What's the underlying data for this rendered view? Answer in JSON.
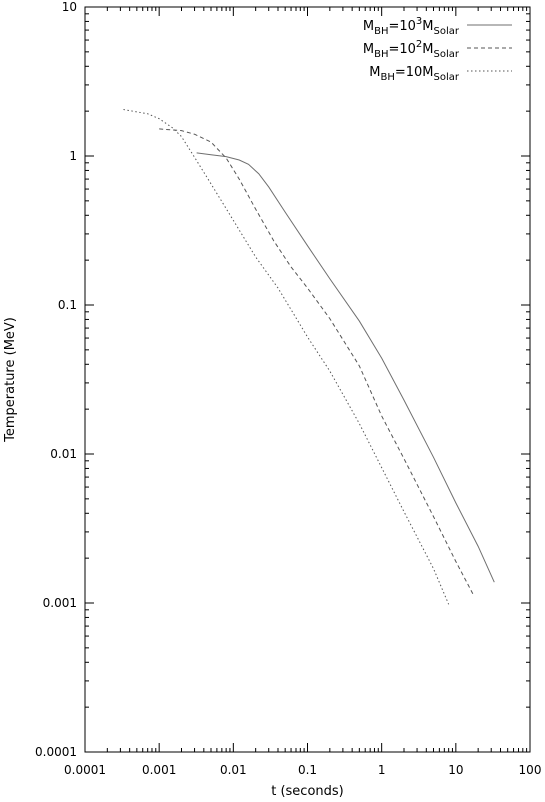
{
  "chart_data": {
    "type": "line",
    "xlabel": "t (seconds)",
    "ylabel": "Temperature (MeV)",
    "xscale": "log",
    "yscale": "log",
    "xlim": [
      0.0001,
      100
    ],
    "ylim": [
      0.0001,
      10
    ],
    "xtick_labels": [
      "0.0001",
      "0.001",
      "0.01",
      "0.1",
      "1",
      "10",
      "100"
    ],
    "ytick_labels": [
      "0.0001",
      "0.001",
      "0.01",
      "0.1",
      "1",
      "10"
    ],
    "grid": false,
    "legend_position": "top-right",
    "series": [
      {
        "name": "M_BH=10^3 M_Solar",
        "label_main": "M",
        "label_sub1": "BH",
        "label_mid": "=10",
        "label_sup": "3",
        "label_m2": "M",
        "label_sub2": "Solar",
        "style": "solid",
        "color": "#6f6f6f",
        "x": [
          0.0032,
          0.005,
          0.008,
          0.012,
          0.016,
          0.022,
          0.03,
          0.05,
          0.1,
          0.2,
          0.5,
          1.0,
          2.0,
          5.0,
          10.0,
          20.0,
          33.0
        ],
        "y": [
          1.05,
          1.02,
          0.99,
          0.94,
          0.88,
          0.76,
          0.62,
          0.42,
          0.25,
          0.15,
          0.078,
          0.044,
          0.023,
          0.0095,
          0.0047,
          0.0024,
          0.00138
        ]
      },
      {
        "name": "M_BH=10^2 M_Solar",
        "label_main": "M",
        "label_sub1": "BH",
        "label_mid": "=10",
        "label_sup": "2",
        "label_m2": "M",
        "label_sub2": "Solar",
        "style": "dashed",
        "color": "#555555",
        "x": [
          0.001,
          0.002,
          0.003,
          0.005,
          0.008,
          0.012,
          0.02,
          0.035,
          0.06,
          0.1,
          0.2,
          0.5,
          1.0,
          2.0,
          5.0,
          10.0,
          17.0
        ],
        "y": [
          1.52,
          1.48,
          1.4,
          1.24,
          0.97,
          0.7,
          0.44,
          0.27,
          0.18,
          0.13,
          0.081,
          0.039,
          0.018,
          0.0093,
          0.0038,
          0.0019,
          0.00115
        ]
      },
      {
        "name": "M_BH=10M_Solar",
        "label_main": "M",
        "label_sub1": "BH",
        "label_mid": "=10",
        "label_sup": "",
        "label_m2": "M",
        "label_sub2": "Solar",
        "style": "dotted",
        "color": "#555555",
        "x": [
          0.00033,
          0.0007,
          0.001,
          0.0015,
          0.002,
          0.003,
          0.005,
          0.01,
          0.02,
          0.04,
          0.07,
          0.1,
          0.2,
          0.5,
          1.0,
          2.0,
          5.0,
          8.0
        ],
        "y": [
          2.05,
          1.92,
          1.78,
          1.55,
          1.35,
          0.98,
          0.65,
          0.37,
          0.21,
          0.13,
          0.082,
          0.061,
          0.036,
          0.016,
          0.0081,
          0.0041,
          0.0017,
          0.00098
        ]
      }
    ]
  }
}
